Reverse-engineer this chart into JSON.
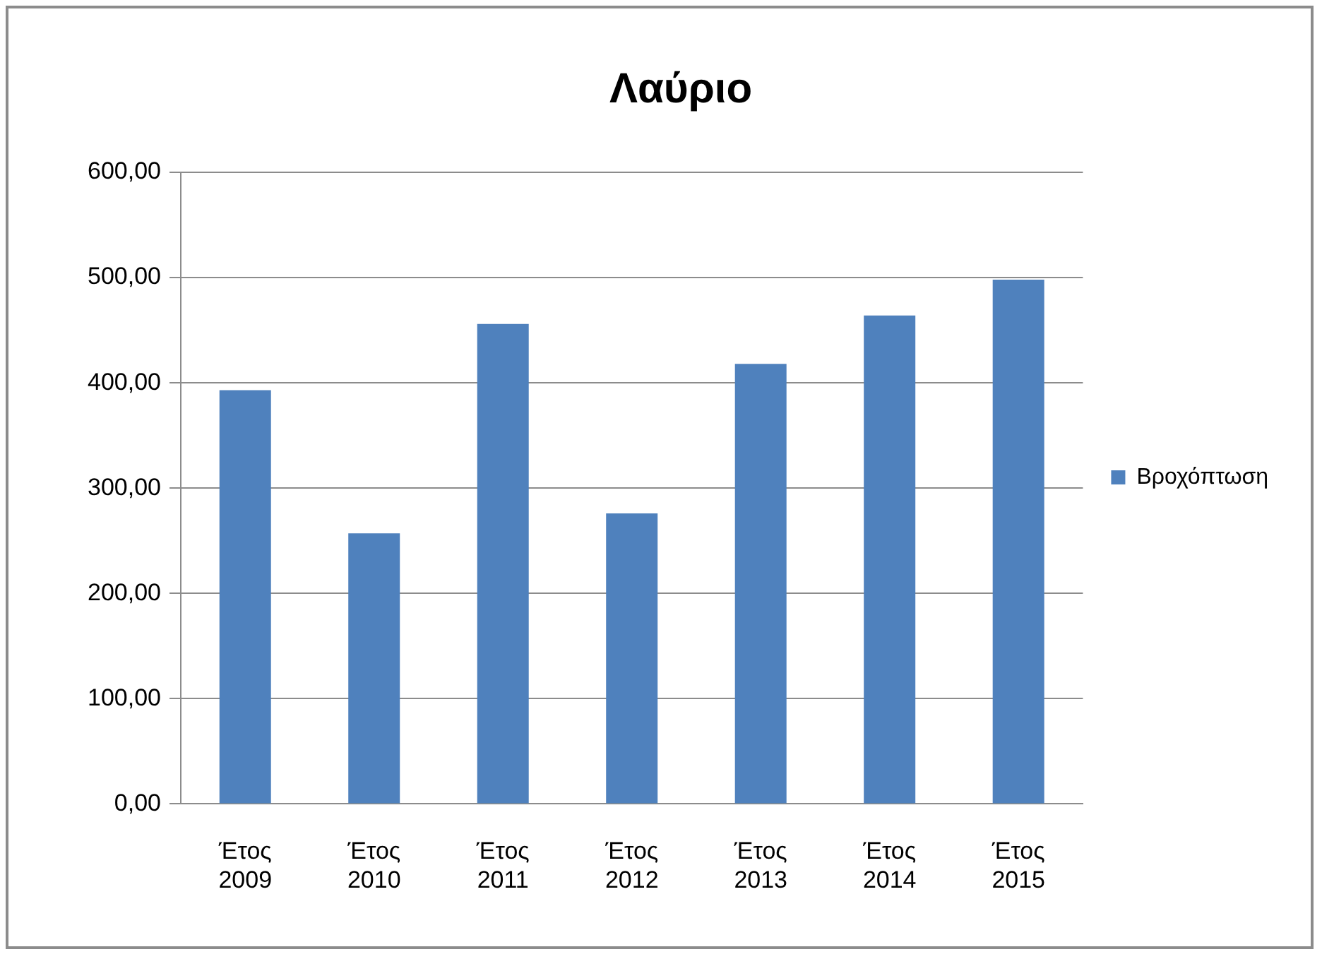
{
  "chart_data": {
    "type": "bar",
    "title": "Λαύριο",
    "categories": [
      "Έτος 2009",
      "Έτος 2010",
      "Έτος 2011",
      "Έτος 2012",
      "Έτος 2013",
      "Έτος 2014",
      "Έτος 2015"
    ],
    "series": [
      {
        "name": "Βροχόπτωση",
        "color": "#4f81bd",
        "values": [
          393,
          257,
          456,
          276,
          418,
          464,
          498
        ]
      }
    ],
    "ylim": [
      0,
      600
    ],
    "yticks": [
      {
        "value": 0,
        "label": "0,00"
      },
      {
        "value": 100,
        "label": "100,00"
      },
      {
        "value": 200,
        "label": "200,00"
      },
      {
        "value": 300,
        "label": "300,00"
      },
      {
        "value": 400,
        "label": "400,00"
      },
      {
        "value": 500,
        "label": "500,00"
      },
      {
        "value": 600,
        "label": "600,00"
      }
    ],
    "grid": "y",
    "legend": "right"
  }
}
